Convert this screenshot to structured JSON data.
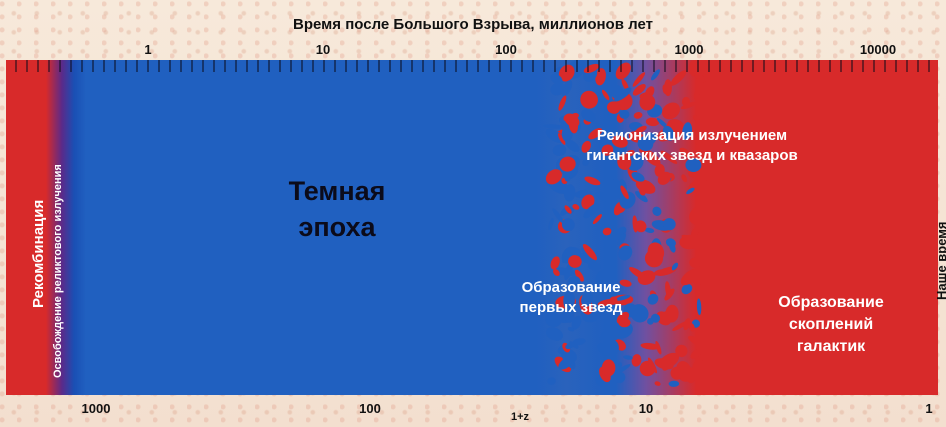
{
  "header": {
    "title": "Время после Большого Взрыва, миллионов лет",
    "ticks": [
      "1",
      "10",
      "100",
      "1000",
      "10000"
    ]
  },
  "footer": {
    "title": "1+z",
    "ticks": [
      "1000",
      "100",
      "10",
      "1"
    ]
  },
  "labels": {
    "recombination": "Рекомбинация",
    "relic_release": "Освобождение реликтового излучения",
    "dark_era": [
      "Темная",
      "эпоха"
    ],
    "reionization": [
      "Реионизация излучением",
      "гигантских звезд и квазаров"
    ],
    "first_stars": [
      "Образование",
      "первых звезд"
    ],
    "clusters": [
      "Образование",
      "скоплений",
      "галактик"
    ],
    "now": "Наше время"
  },
  "colors": {
    "ionized": "#d82a2a",
    "neutral": "#2060c0",
    "recombination_edge": "#5a2a8a"
  }
}
